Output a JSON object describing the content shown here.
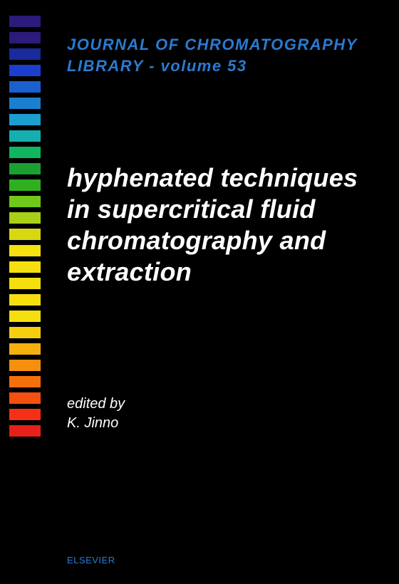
{
  "cover": {
    "background_color": "#000000",
    "series": {
      "line1": "JOURNAL OF CHROMATOGRAPHY",
      "line2": "LIBRARY - volume 53",
      "color": "#2a7bd1",
      "fontsize": 22,
      "font_weight": "bold",
      "italic": true,
      "letter_spacing": 1.5
    },
    "title": {
      "lines": [
        "hyphenated techniques",
        "in supercritical fluid",
        "chromatography and",
        "extraction"
      ],
      "color": "#ffffff",
      "fontsize": 36,
      "font_weight": "bold",
      "italic": true
    },
    "editor": {
      "label": "edited by",
      "name": "K. Jinno",
      "color": "#ffffff",
      "fontsize": 20,
      "italic": true
    },
    "publisher": {
      "text": "ELSEVIER",
      "color": "#2a7bd1",
      "fontsize": 13
    },
    "spectrum": {
      "swatch_width": 44,
      "swatch_height": 16,
      "gap": 7,
      "colors": [
        "#2e1a7a",
        "#2e1a7a",
        "#1a2a9a",
        "#1a3fcf",
        "#1a60cf",
        "#1a7fcf",
        "#1a9fcf",
        "#15afaf",
        "#10b560",
        "#1a9f30",
        "#30b020",
        "#70c818",
        "#a8d018",
        "#d8d812",
        "#f5e010",
        "#f5df0e",
        "#f5df0e",
        "#f5df0e",
        "#f5df0e",
        "#f5cf0e",
        "#f5b00e",
        "#f5900e",
        "#f5700c",
        "#f55010",
        "#f53016",
        "#e8201a"
      ]
    }
  }
}
